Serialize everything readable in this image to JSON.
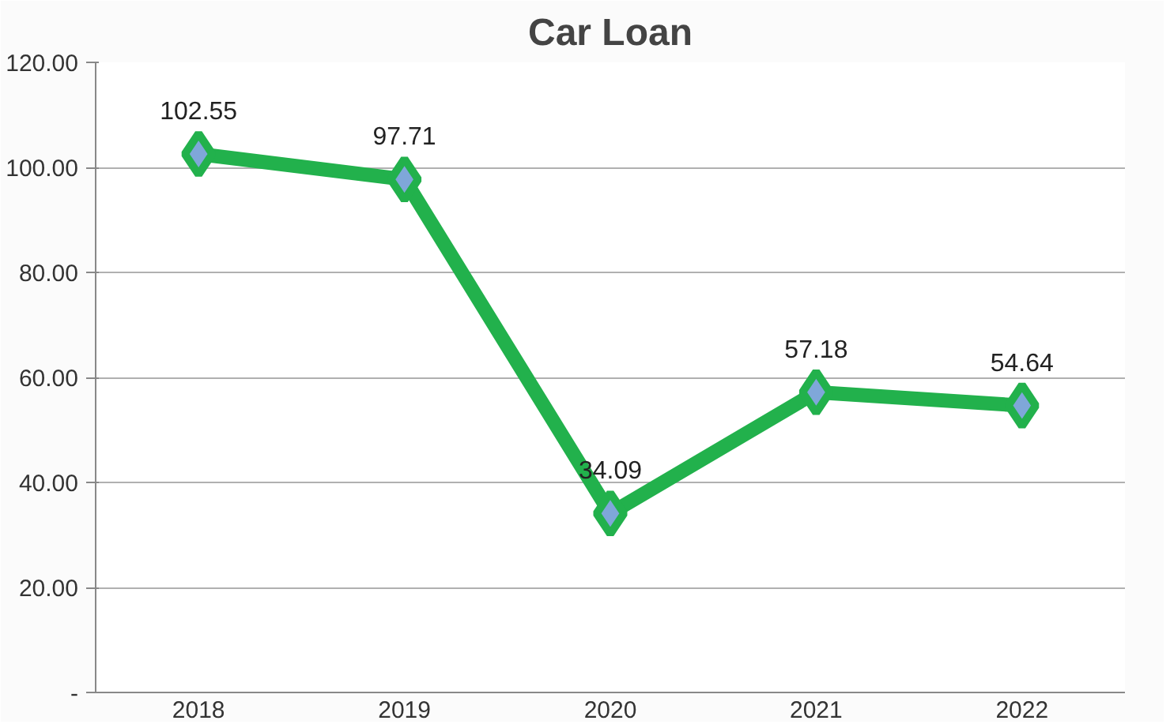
{
  "chart_data": {
    "type": "line",
    "title": "Car Loan",
    "categories": [
      "2018",
      "2019",
      "2020",
      "2021",
      "2022"
    ],
    "series": [
      {
        "color": "#22b14c",
        "values": [
          102.55,
          97.71,
          34.09,
          57.18,
          54.64
        ]
      }
    ],
    "ylim": [
      0,
      120
    ],
    "yticks": [
      {
        "value": 0,
        "label": "-"
      },
      {
        "value": 20,
        "label": "20.00"
      },
      {
        "value": 40,
        "label": "40.00"
      },
      {
        "value": 60,
        "label": "60.00"
      },
      {
        "value": 80,
        "label": "80.00"
      },
      {
        "value": 100,
        "label": "100.00"
      },
      {
        "value": 120,
        "label": "120.00"
      }
    ],
    "grid": "y",
    "marker": "diamond",
    "line_style": "solid",
    "data_labels": true
  }
}
